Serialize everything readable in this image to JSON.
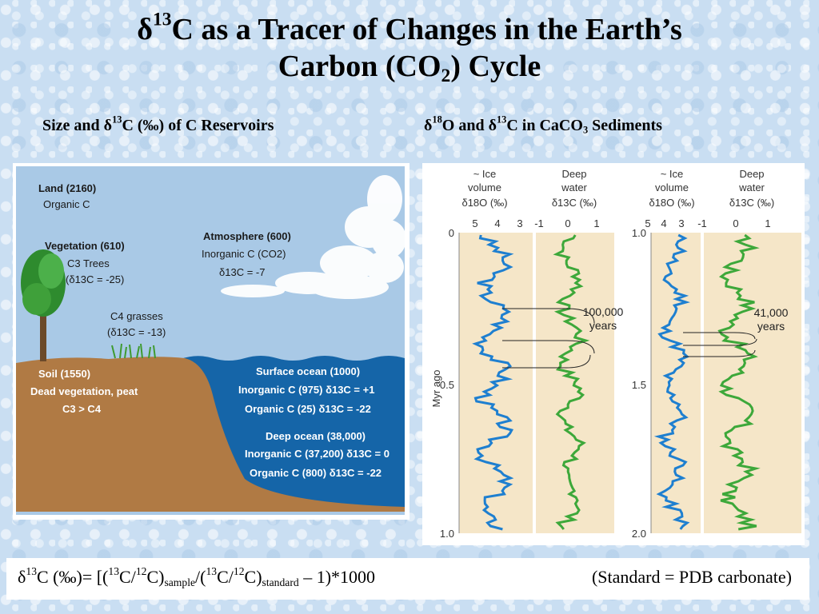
{
  "title": {
    "line1_delta": "δ",
    "line1_sup": "13",
    "line1_rest": "C as a Tracer of Changes in the Earth’s",
    "line2_pre": "Carbon (CO",
    "line2_sub": "2",
    "line2_post": ") Cycle"
  },
  "left_heading": {
    "pre": "Size and δ",
    "sup": "13",
    "post": "C (‰) of C Reservoirs"
  },
  "right_heading": {
    "delta1": "δ",
    "sup1": "18",
    "mid": "O and δ",
    "sup2": "13",
    "mid2": "C in CaCO",
    "sub": "3",
    "post": " Sediments"
  },
  "reservoirs": {
    "land_title": "Land (2160)",
    "land_sub": "Organic C",
    "veg_title": "Vegetation (610)",
    "veg_l1": "C3 Trees",
    "veg_l2": "(δ13C = -25)",
    "c4_l1": "C4 grasses",
    "c4_l2": "(δ13C = -13)",
    "atm_title": "Atmosphere (600)",
    "atm_l1": "Inorganic C (CO2)",
    "atm_l2": "δ13C = -7",
    "soil_l1": "Soil (1550)",
    "soil_l2": "Dead vegetation, peat",
    "soil_l3": "C3 > C4",
    "surf_title": "Surface ocean (1000)",
    "surf_l1": "Inorganic C (975)   δ13C = +1",
    "surf_l2": "Organic C (25)   δ13C = -22",
    "deep_title": "Deep ocean (38,000)",
    "deep_l1": "Inorganic C (37,200)   δ13C = 0",
    "deep_l2": "Organic C (800)   δ13C = -22"
  },
  "records": {
    "ice_label_1": "~ Ice",
    "ice_label_2": "volume",
    "ice_label_3": "δ18O (‰)",
    "deep_label_1": "Deep",
    "deep_label_2": "water",
    "deep_label_3": "δ13C (‰)",
    "o18_ticks": [
      "5",
      "4",
      "3"
    ],
    "c13_ticks": [
      "-1",
      "0",
      "1"
    ],
    "left_y_ticks": [
      "0",
      "0.5",
      "1.0"
    ],
    "right_y_ticks": [
      "1.0",
      "1.5",
      "2.0"
    ],
    "y_axis_label": "Myr ago",
    "left_annotation_1": "100,000",
    "left_annotation_2": "years",
    "right_annotation_1": "41,000",
    "right_annotation_2": "years"
  },
  "footer": {
    "formula_a": "δ",
    "formula_b": "13",
    "formula_c": "C (‰)= [(",
    "formula_d": "13",
    "formula_e": "C/",
    "formula_f": "12",
    "formula_g": "C)",
    "formula_h": "sample",
    "formula_i": "/(",
    "formula_j": "13",
    "formula_k": "C/",
    "formula_l": "12",
    "formula_m": "C)",
    "formula_n": "standard",
    "formula_o": " – 1)*1000",
    "standard": "(Standard = PDB carbonate)"
  },
  "colors": {
    "ocean": "#1565a8",
    "soil": "#b07a44",
    "sky": "#a9c9e6",
    "record_bg": "#f5e6c8"
  }
}
